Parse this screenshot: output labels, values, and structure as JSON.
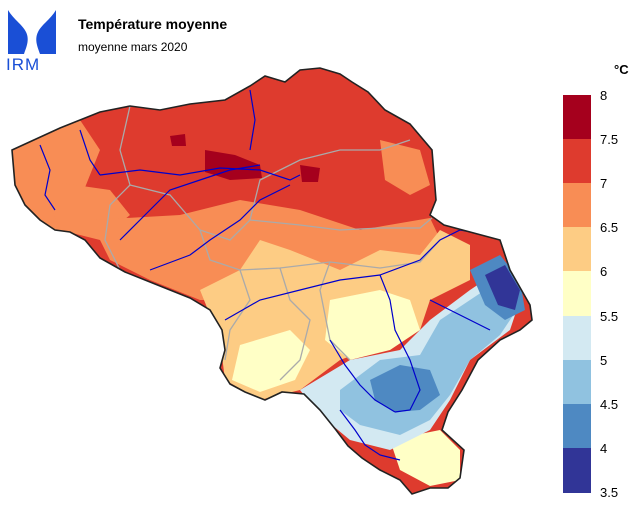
{
  "header": {
    "logo_text": "IRM",
    "title": "Température moyenne",
    "subtitle": "moyenne mars 2020"
  },
  "legend": {
    "unit": "°C",
    "ticks": [
      "8",
      "7.5",
      "7",
      "6.5",
      "6",
      "5.5",
      "5",
      "4.5",
      "4",
      "3.5"
    ],
    "bins": [
      {
        "range": "7.5–8",
        "color": "#a5001d"
      },
      {
        "range": "7–7.5",
        "color": "#de3b2e"
      },
      {
        "range": "6.5–7",
        "color": "#f88d55"
      },
      {
        "range": "6–6.5",
        "color": "#fdcc84"
      },
      {
        "range": "5.5–6",
        "color": "#ffffc6"
      },
      {
        "range": "5–5.5",
        "color": "#d3e9f2"
      },
      {
        "range": "4.5–5",
        "color": "#90c2e0"
      },
      {
        "range": "4–4.5",
        "color": "#4e89c2"
      },
      {
        "range": "3.5–4",
        "color": "#313597"
      }
    ]
  },
  "colors": {
    "rivers": "#0000cc",
    "provinces": "#aaaaaa",
    "border": "#222222",
    "logo": "#1a4fd6"
  }
}
